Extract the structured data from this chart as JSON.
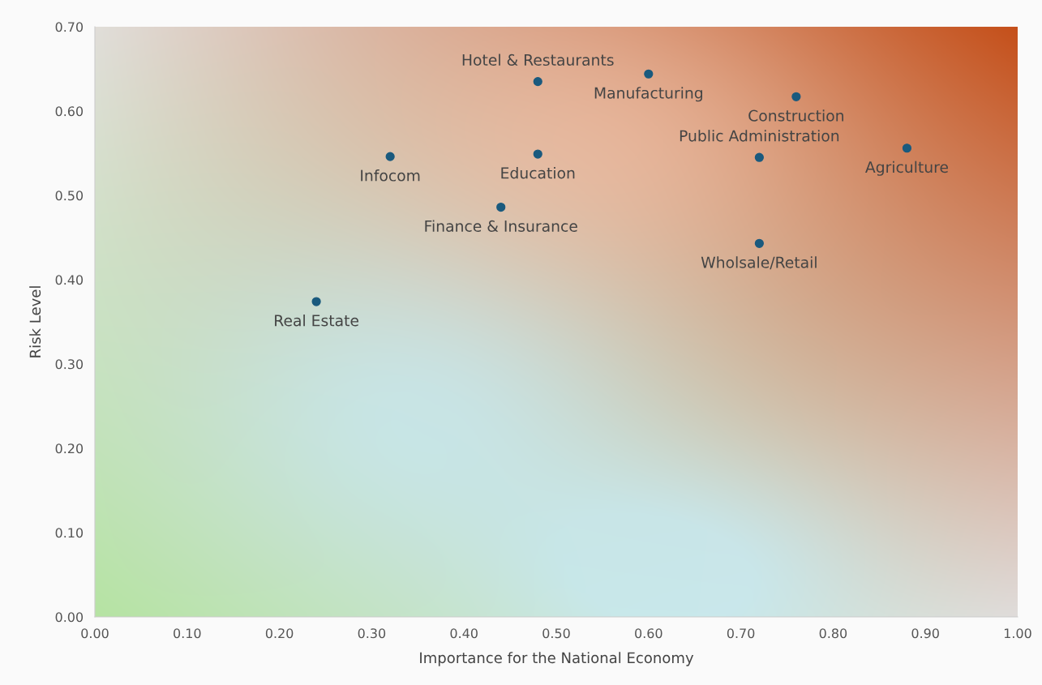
{
  "chart_data": {
    "type": "scatter",
    "xlabel": "Importance for the National Economy",
    "ylabel": "Risk Level",
    "x": [
      0.48,
      0.6,
      0.76,
      0.32,
      0.48,
      0.72,
      0.88,
      0.44,
      0.72,
      0.24
    ],
    "series": [
      {
        "color": "#1a5a7e",
        "values": [
          0.635,
          0.644,
          0.617,
          0.546,
          0.549,
          0.545,
          0.556,
          0.486,
          0.443,
          0.374
        ]
      }
    ],
    "annotations": [
      {
        "text": "Hotel & Restaurants",
        "x": 0.48,
        "y": 0.635
      },
      {
        "text": "Manufacturing",
        "x": 0.6,
        "y": 0.644
      },
      {
        "text": "Construction",
        "x": 0.76,
        "y": 0.617
      },
      {
        "text": "Infocom",
        "x": 0.32,
        "y": 0.546
      },
      {
        "text": "Education",
        "x": 0.48,
        "y": 0.549
      },
      {
        "text": "Public Administration",
        "x": 0.72,
        "y": 0.545
      },
      {
        "text": "Agriculture",
        "x": 0.88,
        "y": 0.556
      },
      {
        "text": "Finance & Insurance",
        "x": 0.44,
        "y": 0.486
      },
      {
        "text": "Wholsale/Retail",
        "x": 0.72,
        "y": 0.443
      },
      {
        "text": "Real Estate",
        "x": 0.24,
        "y": 0.374
      }
    ],
    "xlim": [
      0,
      1
    ],
    "ylim": [
      0,
      0.7
    ],
    "xticks": [
      {
        "value": 0,
        "label": "0.00"
      },
      {
        "value": 0.1,
        "label": "0.10"
      },
      {
        "value": 0.2,
        "label": "0.20"
      },
      {
        "value": 0.3,
        "label": "0.30"
      },
      {
        "value": 0.4,
        "label": "0.40"
      },
      {
        "value": 0.5,
        "label": "0.50"
      },
      {
        "value": 0.6,
        "label": "0.60"
      },
      {
        "value": 0.7,
        "label": "0.70"
      },
      {
        "value": 0.8,
        "label": "0.80"
      },
      {
        "value": 0.9,
        "label": "0.90"
      },
      {
        "value": 1,
        "label": "1.00"
      }
    ],
    "yticks": [
      {
        "value": 0,
        "label": "0.00"
      },
      {
        "value": 0.1,
        "label": "0.10"
      },
      {
        "value": 0.2,
        "label": "0.20"
      },
      {
        "value": 0.3,
        "label": "0.30"
      },
      {
        "value": 0.4,
        "label": "0.40"
      },
      {
        "value": 0.5,
        "label": "0.50"
      },
      {
        "value": 0.6,
        "label": "0.60"
      },
      {
        "value": 0.7,
        "label": "0.70"
      }
    ],
    "grid": false,
    "marker": "circle"
  }
}
